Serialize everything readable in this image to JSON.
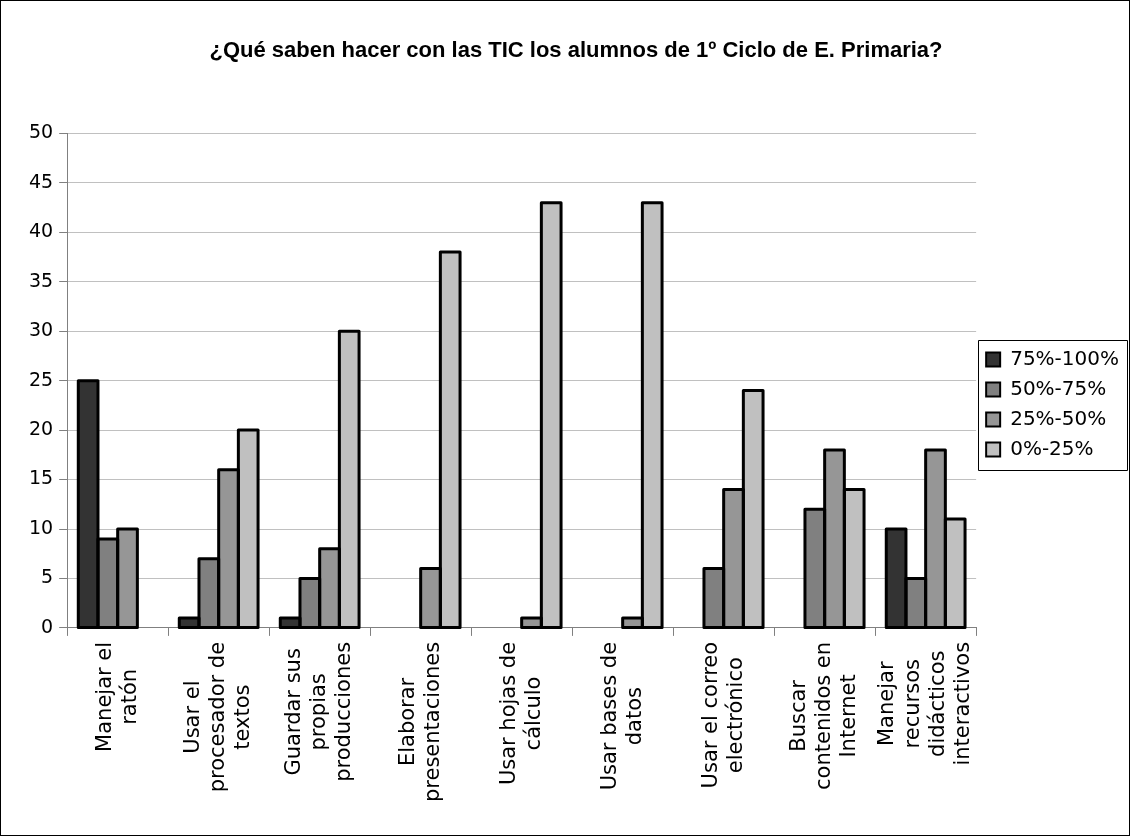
{
  "chart_data": {
    "type": "bar",
    "title": "¿Qué saben hacer con las TIC los alumnos de 1º Ciclo de E. Primaria?",
    "categories": [
      "Manejar el ratón",
      "Usar el procesador de textos",
      "Guardar sus propias producciones",
      "Elaborar presentaciones",
      "Usar hojas de cálculo",
      "Usar bases de datos",
      "Usar el correo electrónico",
      "Buscar contenidos en Internet",
      "Manejar recursos didácticos interactivos"
    ],
    "series": [
      {
        "name": "75%-100%",
        "color": "#333333",
        "values": [
          25,
          1,
          1,
          null,
          null,
          null,
          null,
          null,
          10
        ]
      },
      {
        "name": "50%-75%",
        "color": "#808080",
        "values": [
          9,
          7,
          5,
          null,
          null,
          null,
          6,
          12,
          5
        ]
      },
      {
        "name": "25%-50%",
        "color": "#969696",
        "values": [
          10,
          16,
          8,
          6,
          1,
          1,
          14,
          18,
          18
        ]
      },
      {
        "name": "0%-25%",
        "color": "#c0c0c0",
        "values": [
          null,
          20,
          30,
          38,
          43,
          43,
          24,
          14,
          11
        ]
      }
    ],
    "ylim": [
      0,
      50
    ],
    "yticks": [
      0,
      5,
      10,
      15,
      20,
      25,
      30,
      35,
      40,
      45,
      50
    ],
    "grid": "y",
    "legend": "right"
  }
}
